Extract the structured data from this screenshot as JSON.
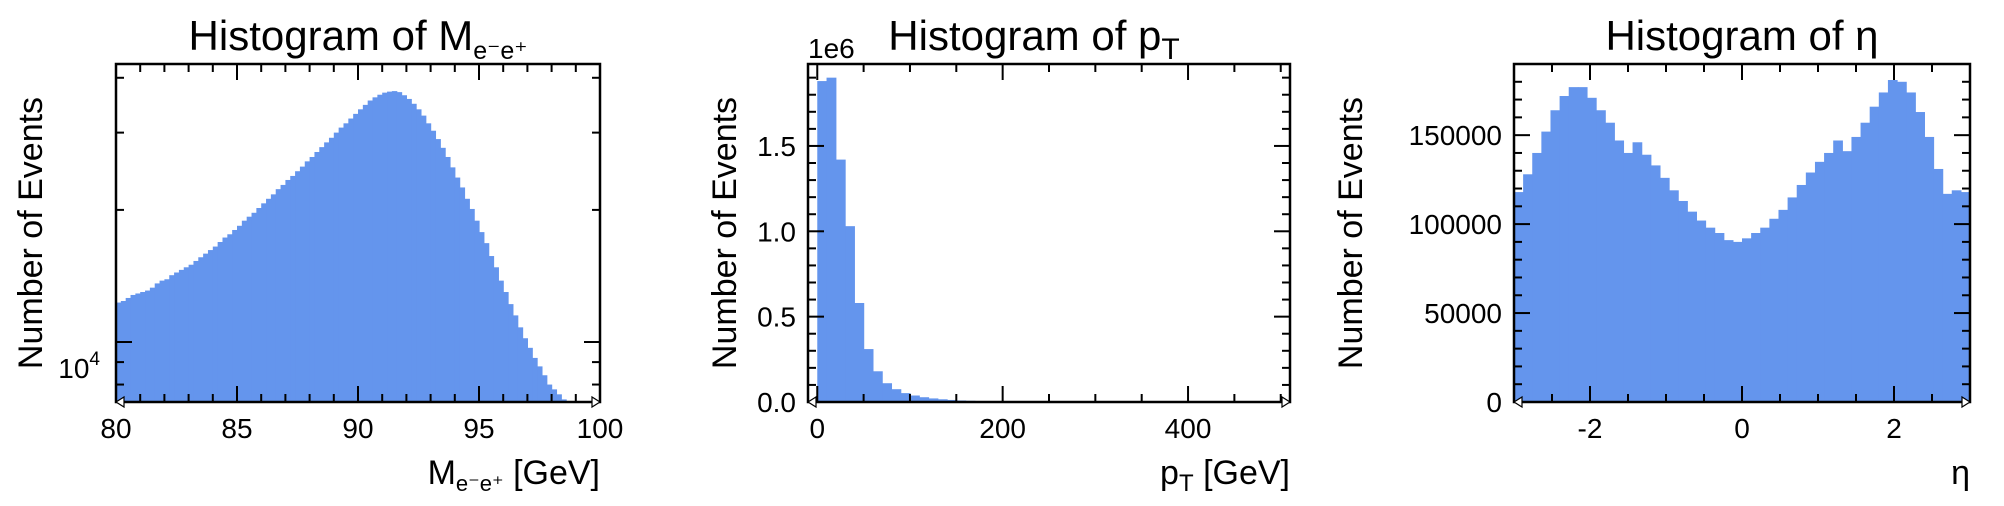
{
  "chart_data": [
    {
      "type": "bar",
      "title": "Histogram of M",
      "title_sub": "e⁻e⁺",
      "xlabel": "M",
      "xlabel_sub": "e⁻e⁺",
      "xlabel_unit": " [GeV]",
      "ylabel": "Number of Events",
      "xlim": [
        80,
        100
      ],
      "ylim": [
        7300,
        43000
      ],
      "yscale": "log",
      "color": "#6495ED",
      "x_ticks": [
        "80",
        "85",
        "90",
        "95",
        "100"
      ],
      "y_tick_label": "10",
      "y_tick_exp": "4",
      "bin_start": 80,
      "bin_width": 0.2,
      "values": [
        12300,
        12400,
        12600,
        12800,
        12900,
        13000,
        13100,
        13300,
        13600,
        13800,
        13900,
        14200,
        14400,
        14600,
        14800,
        15000,
        15300,
        15600,
        15900,
        16200,
        16500,
        16900,
        17300,
        17600,
        18000,
        18400,
        18900,
        19300,
        19700,
        20200,
        20700,
        21200,
        21700,
        22300,
        22800,
        23400,
        23900,
        24500,
        25100,
        25800,
        26400,
        27100,
        27800,
        28500,
        29200,
        30000,
        30800,
        31500,
        32300,
        33100,
        33900,
        34700,
        35500,
        36100,
        36600,
        37000,
        37200,
        37300,
        37100,
        36500,
        35800,
        34900,
        33900,
        32800,
        31500,
        30300,
        29000,
        27700,
        26400,
        25000,
        23700,
        22500,
        21200,
        20100,
        18900,
        17800,
        16800,
        15700,
        14800,
        13800,
        13000,
        12200,
        11500,
        10800,
        10200,
        9700,
        9200,
        8800,
        8400,
        8000,
        7800,
        7600,
        7400,
        7200,
        7050,
        6950,
        6850,
        6750,
        6650,
        6550
      ]
    },
    {
      "type": "bar",
      "title": "Histogram of p",
      "title_sub": "T",
      "xlabel": "p",
      "xlabel_sub": "T",
      "xlabel_unit": " [GeV]",
      "ylabel": "Number of Events",
      "offset_text": "1e6",
      "xlim": [
        -10,
        510
      ],
      "ylim": [
        0,
        1.98
      ],
      "color": "#6495ED",
      "x_ticks": [
        "0",
        "200",
        "400"
      ],
      "x_tick_values": [
        0,
        200,
        400
      ],
      "y_ticks": [
        "0.0",
        "0.5",
        "1.0",
        "1.5"
      ],
      "y_tick_values": [
        0,
        0.5,
        1.0,
        1.5
      ],
      "bin_start": 0,
      "bin_width": 10,
      "values": [
        1.88,
        1.9,
        1.42,
        1.03,
        0.58,
        0.31,
        0.18,
        0.11,
        0.075,
        0.052,
        0.038,
        0.028,
        0.021,
        0.016,
        0.012,
        0.009,
        0.007,
        0.005,
        0.004,
        0.003,
        0.0025,
        0.002,
        0.0016,
        0.0013,
        0.001,
        0.0008,
        0.0006,
        0.0005,
        0.0004,
        0.0003,
        0.00025,
        0.0002,
        0.00015,
        0.0001,
        0.0001,
        8e-05,
        6e-05,
        5e-05,
        4e-05,
        3e-05,
        2e-05,
        2e-05,
        1e-05,
        1e-05,
        1e-05,
        1e-05,
        0.0,
        0.0,
        0.0,
        0.0
      ]
    },
    {
      "type": "bar",
      "title": "Histogram of η",
      "xlabel": "η",
      "ylabel": "Number of Events",
      "xlim": [
        -3,
        3
      ],
      "ylim": [
        0,
        190000
      ],
      "color": "#6495ED",
      "x_ticks": [
        "-2",
        "0",
        "2"
      ],
      "x_tick_values": [
        -2,
        0,
        2
      ],
      "y_ticks": [
        "0",
        "50000",
        "100000",
        "150000"
      ],
      "y_tick_values": [
        0,
        50000,
        100000,
        150000
      ],
      "bin_start": -3,
      "bin_width": 0.12,
      "values": [
        118000,
        128000,
        140000,
        152000,
        164000,
        172000,
        177000,
        177000,
        171000,
        164000,
        157000,
        147000,
        140000,
        146000,
        139000,
        133000,
        126000,
        119000,
        113000,
        107000,
        102000,
        98000,
        95000,
        91000,
        90000,
        92000,
        95000,
        98000,
        103000,
        108000,
        115000,
        122000,
        129000,
        135000,
        140000,
        147000,
        141000,
        149000,
        157000,
        166000,
        174000,
        181000,
        180000,
        174000,
        163000,
        149000,
        131000,
        117000,
        119000,
        118000
      ]
    }
  ]
}
